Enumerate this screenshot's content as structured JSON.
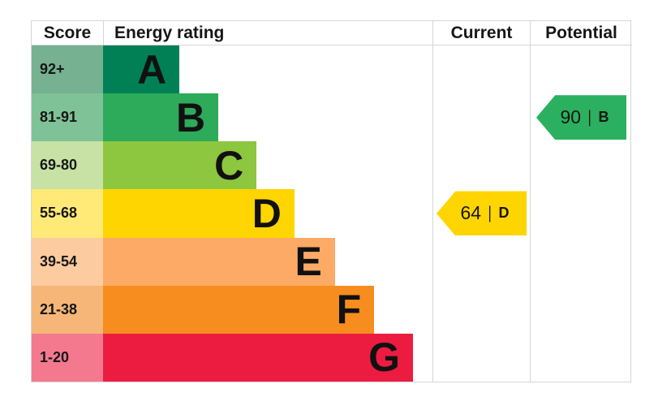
{
  "header": {
    "score": "Score",
    "energy_rating": "Energy rating",
    "current": "Current",
    "potential": "Potential"
  },
  "arrow_separator": "|",
  "bands": [
    {
      "score": "92+",
      "letter": "A",
      "bar_color": "#008054",
      "score_cell_color": "#76b191",
      "bar_width_pct": 23.2
    },
    {
      "score": "81-91",
      "letter": "B",
      "bar_color": "#2daa5a",
      "score_cell_color": "#7fc297",
      "bar_width_pct": 35.0
    },
    {
      "score": "69-80",
      "letter": "C",
      "bar_color": "#8dc63f",
      "score_cell_color": "#c7e2a4",
      "bar_width_pct": 46.6
    },
    {
      "score": "55-68",
      "letter": "D",
      "bar_color": "#ffd500",
      "score_cell_color": "#ffea78",
      "bar_width_pct": 58.1
    },
    {
      "score": "39-54",
      "letter": "E",
      "bar_color": "#fcaa65",
      "score_cell_color": "#fccb9f",
      "bar_width_pct": 70.4
    },
    {
      "score": "21-38",
      "letter": "F",
      "bar_color": "#f68d1e",
      "score_cell_color": "#f6b678",
      "bar_width_pct": 82.3
    },
    {
      "score": "1-20",
      "letter": "G",
      "bar_color": "#ec1c41",
      "score_cell_color": "#f4798e",
      "bar_width_pct": 94.1
    }
  ],
  "current": {
    "score": "64",
    "band": "D",
    "band_index": 3,
    "color": "#ffd500"
  },
  "potential": {
    "score": "90",
    "band": "B",
    "band_index": 1,
    "color": "#2bb05f"
  },
  "chart_data": {
    "type": "bar",
    "title": "EPC energy efficiency rating chart",
    "columns": [
      "Score",
      "Energy rating",
      "Current",
      "Potential"
    ],
    "categories": [
      "A",
      "B",
      "C",
      "D",
      "E",
      "F",
      "G"
    ],
    "score_ranges": [
      "92+",
      "81-91",
      "69-80",
      "55-68",
      "39-54",
      "21-38",
      "1-20"
    ],
    "bar_relative_lengths_pct": [
      23.2,
      35.0,
      46.6,
      58.1,
      70.4,
      82.3,
      94.1
    ],
    "band_colors": [
      "#008054",
      "#2daa5a",
      "#8dc63f",
      "#ffd500",
      "#fcaa65",
      "#f68d1e",
      "#ec1c41"
    ],
    "current": {
      "value": 64,
      "band": "D"
    },
    "potential": {
      "value": 90,
      "band": "B"
    },
    "legend_position": "none",
    "grid": false
  }
}
